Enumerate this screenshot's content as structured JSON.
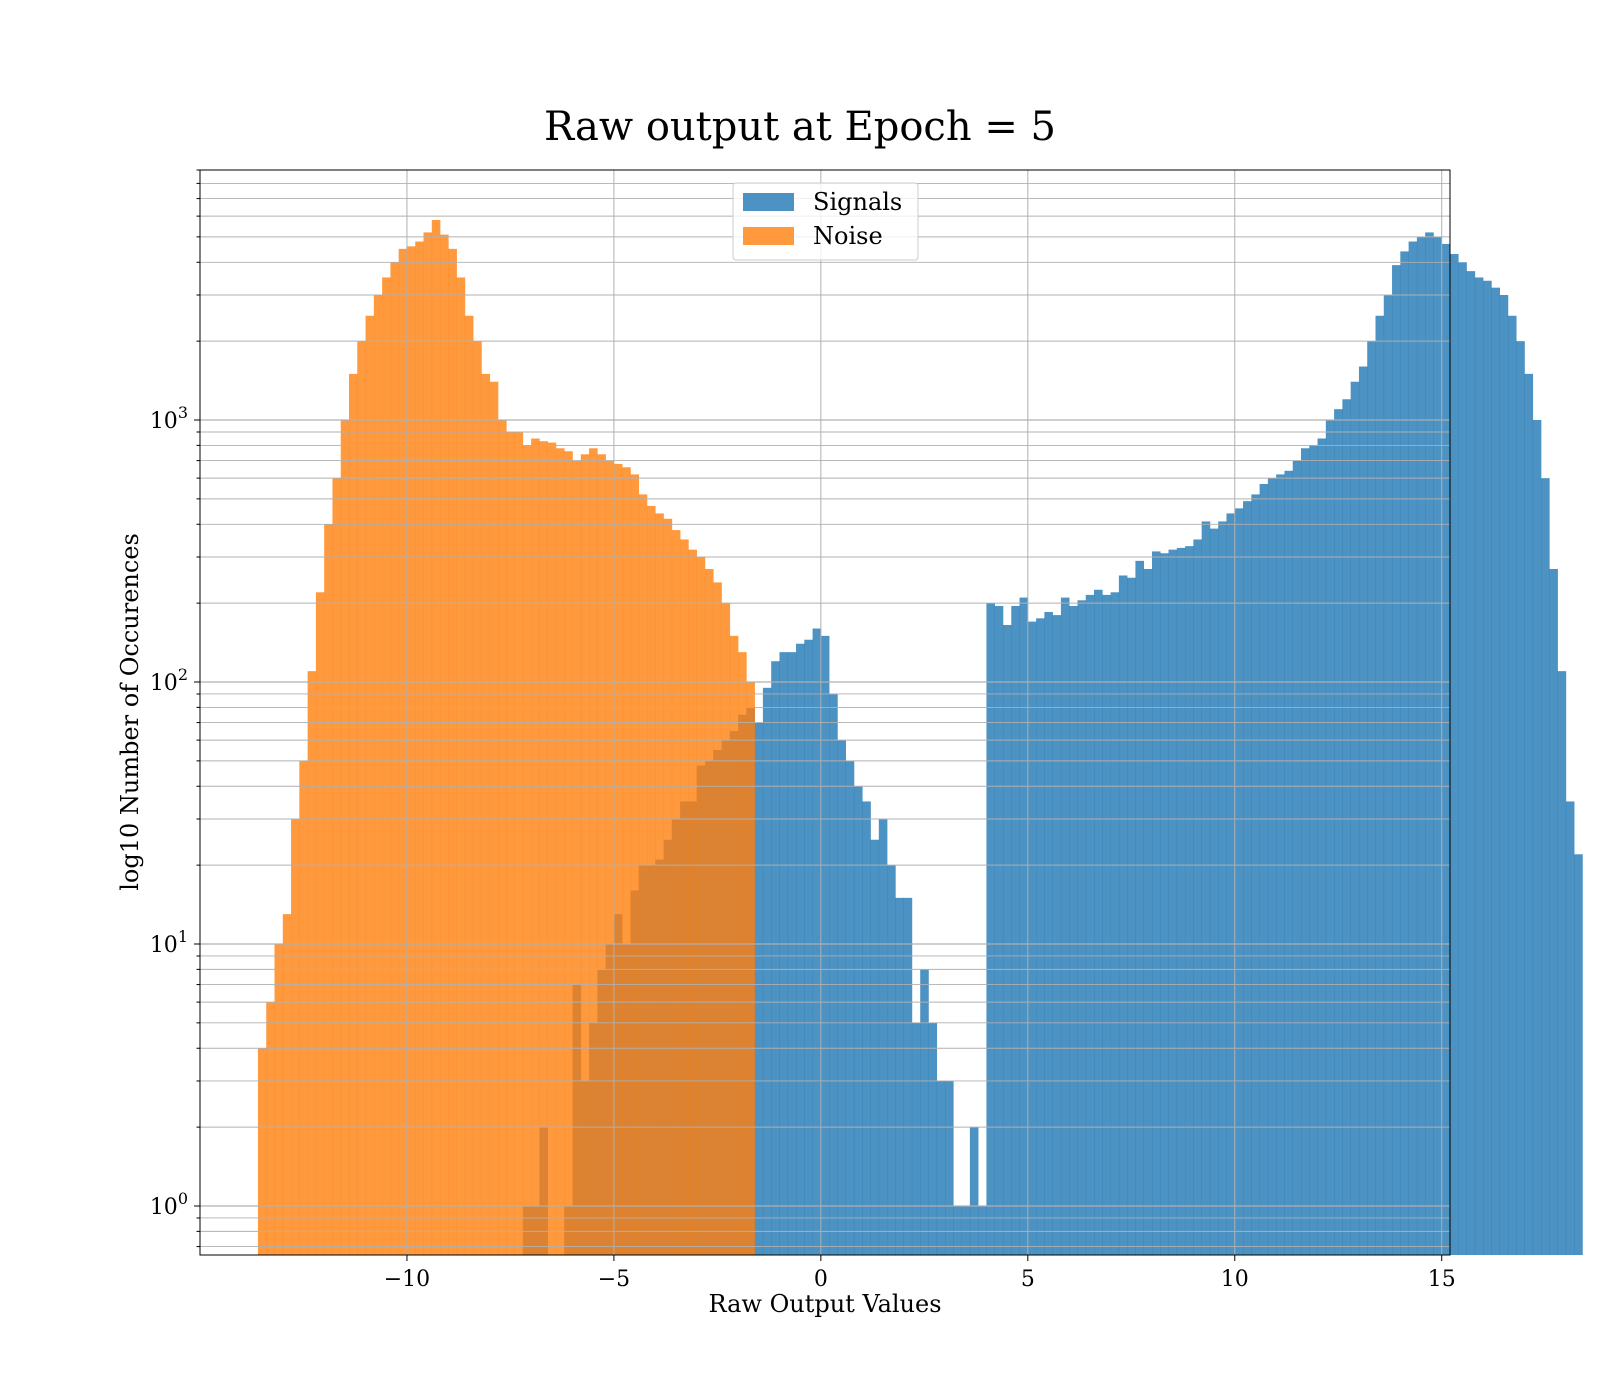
{
  "chart_data": {
    "type": "histogram",
    "title": "Raw output at Epoch = 5",
    "xlabel": "Raw Output Values",
    "ylabel": "log10 Number of Occurences",
    "xlim": [
      -15,
      15.2
    ],
    "ylim": [
      0.65,
      9000
    ],
    "yscale": "log",
    "grid": true,
    "legend_position": "upper center",
    "xticks": [
      -10,
      -5,
      0,
      5,
      10,
      15
    ],
    "xtick_labels": [
      "−10",
      "−5",
      "0",
      "5",
      "10",
      "15"
    ],
    "yticks": [
      1,
      10,
      100,
      1000
    ],
    "ytick_labels": [
      {
        "base": "10",
        "exp": "0"
      },
      {
        "base": "10",
        "exp": "1"
      },
      {
        "base": "10",
        "exp": "2"
      },
      {
        "base": "10",
        "exp": "3"
      }
    ],
    "series": [
      {
        "name": "Signals",
        "color": "#1f77b4",
        "alpha": 0.8,
        "bin_start": -7.2,
        "bin_width": 0.2,
        "counts": [
          1,
          1,
          2,
          0,
          0,
          1,
          7,
          3,
          5,
          8,
          10,
          13,
          10,
          16,
          20,
          20,
          21,
          25,
          30,
          35,
          35,
          48,
          50,
          55,
          60,
          65,
          75,
          80,
          70,
          95,
          120,
          130,
          130,
          140,
          145,
          160,
          150,
          90,
          60,
          50,
          40,
          35,
          25,
          30,
          20,
          15,
          15,
          5,
          8,
          5,
          3,
          3,
          1,
          1,
          2,
          1,
          200,
          195,
          165,
          195,
          210,
          170,
          175,
          185,
          180,
          210,
          195,
          205,
          215,
          225,
          215,
          220,
          255,
          250,
          290,
          270,
          315,
          310,
          320,
          325,
          330,
          350,
          410,
          385,
          410,
          440,
          460,
          490,
          520,
          570,
          600,
          620,
          640,
          700,
          780,
          800,
          850,
          1000,
          1100,
          1200,
          1400,
          1600,
          2000,
          2500,
          3000,
          3900,
          4400,
          4800,
          5000,
          5200,
          5000,
          4700,
          4300,
          4000,
          3700,
          3500,
          3400,
          3200,
          3000,
          2500,
          2000,
          1500,
          1000,
          600,
          270,
          110,
          35,
          22
        ]
      },
      {
        "name": "Noise",
        "color": "#ff7f0e",
        "alpha": 0.8,
        "bin_start": -13.6,
        "bin_width": 0.2,
        "counts": [
          4,
          6,
          10,
          13,
          30,
          50,
          110,
          220,
          400,
          600,
          1000,
          1500,
          2000,
          2500,
          3000,
          3500,
          4000,
          4500,
          4600,
          4800,
          5200,
          5800,
          5100,
          4500,
          3500,
          2500,
          2000,
          1500,
          1400,
          1000,
          900,
          900,
          800,
          850,
          830,
          820,
          780,
          760,
          700,
          740,
          780,
          740,
          700,
          680,
          660,
          620,
          520,
          470,
          440,
          420,
          380,
          350,
          320,
          300,
          270,
          240,
          200,
          150,
          130,
          100
        ]
      }
    ]
  }
}
